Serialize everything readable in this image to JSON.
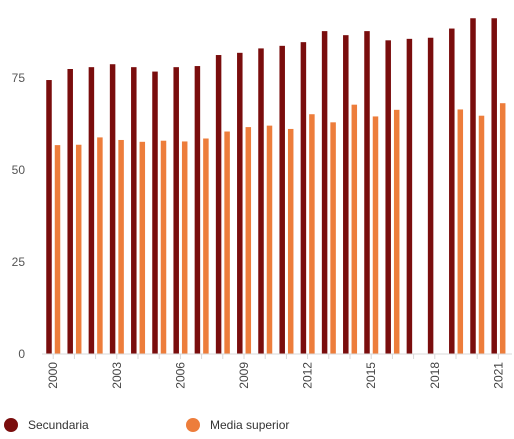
{
  "chart_data": {
    "type": "bar",
    "categories": [
      "2000",
      "2001",
      "2002",
      "2003",
      "2004",
      "2005",
      "2006",
      "2007",
      "2008",
      "2009",
      "2010",
      "2011",
      "2012",
      "2013",
      "2014",
      "2015",
      "2016",
      "2017",
      "2018",
      "2019",
      "2020",
      "2021"
    ],
    "x_tick_labels": [
      "2000",
      "2003",
      "2006",
      "2009",
      "2012",
      "2015",
      "2018",
      "2021"
    ],
    "series": [
      {
        "name": "Secundaria",
        "color": "#7a0d0d",
        "values": [
          74.5,
          77.5,
          78,
          78.8,
          78,
          76.8,
          78,
          78.3,
          81.3,
          81.9,
          83.1,
          83.8,
          84.8,
          87.8,
          86.7,
          87.8,
          85.3,
          85.7,
          86,
          88.5,
          91.3,
          91.3
        ]
      },
      {
        "name": "Media superior",
        "color": "#ed7d3b",
        "values": [
          56.8,
          56.9,
          58.9,
          58.2,
          57.7,
          58,
          57.8,
          58.6,
          60.5,
          61.7,
          62.1,
          61.2,
          65.2,
          63,
          67.8,
          64.6,
          66.4,
          null,
          null,
          66.5,
          64.8,
          68.2
        ]
      }
    ],
    "y_ticks": [
      0,
      25,
      50,
      75
    ],
    "ylim": [
      0,
      93
    ],
    "grid": false,
    "legend_position": "bottom-left",
    "title": "",
    "xlabel": "",
    "ylabel": ""
  }
}
